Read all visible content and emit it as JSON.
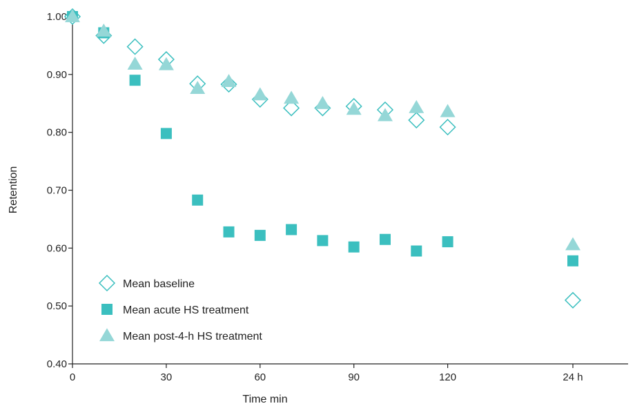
{
  "chart_data": {
    "type": "scatter",
    "xlabel": "Time min",
    "ylabel": "Retention",
    "ylim": [
      0.4,
      1.0
    ],
    "y_ticks": [
      "0.40",
      "0.50",
      "0.60",
      "0.70",
      "0.80",
      "0.90",
      "1.00"
    ],
    "x_ticks": [
      "0",
      "30",
      "60",
      "90",
      "120",
      "24 h"
    ],
    "x_tick_values": [
      0,
      30,
      60,
      90,
      120,
      "24 h"
    ],
    "legend_position": "bottom-left",
    "colors": {
      "accent": "#3bbfbf",
      "light": "#95d7d7",
      "axis": "#222222"
    },
    "series": [
      {
        "name": "Mean baseline",
        "marker": "open-diamond",
        "color": "#3bbfbf",
        "x": [
          0,
          10,
          20,
          30,
          40,
          50,
          60,
          70,
          80,
          90,
          100,
          110,
          120,
          "24 h"
        ],
        "y": [
          1.0,
          0.967,
          0.948,
          0.926,
          0.884,
          0.883,
          0.857,
          0.842,
          0.842,
          0.845,
          0.839,
          0.821,
          0.809,
          0.51
        ]
      },
      {
        "name": "Mean acute HS treatment",
        "marker": "filled-square",
        "color": "#3bbfbf",
        "x": [
          0,
          10,
          20,
          30,
          40,
          50,
          60,
          70,
          80,
          90,
          100,
          110,
          120,
          "24 h"
        ],
        "y": [
          1.0,
          0.972,
          0.89,
          0.798,
          0.683,
          0.628,
          0.622,
          0.632,
          0.613,
          0.602,
          0.615,
          0.595,
          0.611,
          0.578
        ]
      },
      {
        "name": "Mean post-4-h HS treatment",
        "marker": "filled-triangle",
        "color": "#95d7d7",
        "x": [
          0,
          10,
          20,
          30,
          40,
          50,
          60,
          70,
          80,
          90,
          100,
          110,
          120,
          "24 h"
        ],
        "y": [
          1.0,
          0.975,
          0.918,
          0.917,
          0.876,
          0.888,
          0.865,
          0.859,
          0.85,
          0.84,
          0.829,
          0.843,
          0.836,
          0.606
        ]
      }
    ]
  }
}
